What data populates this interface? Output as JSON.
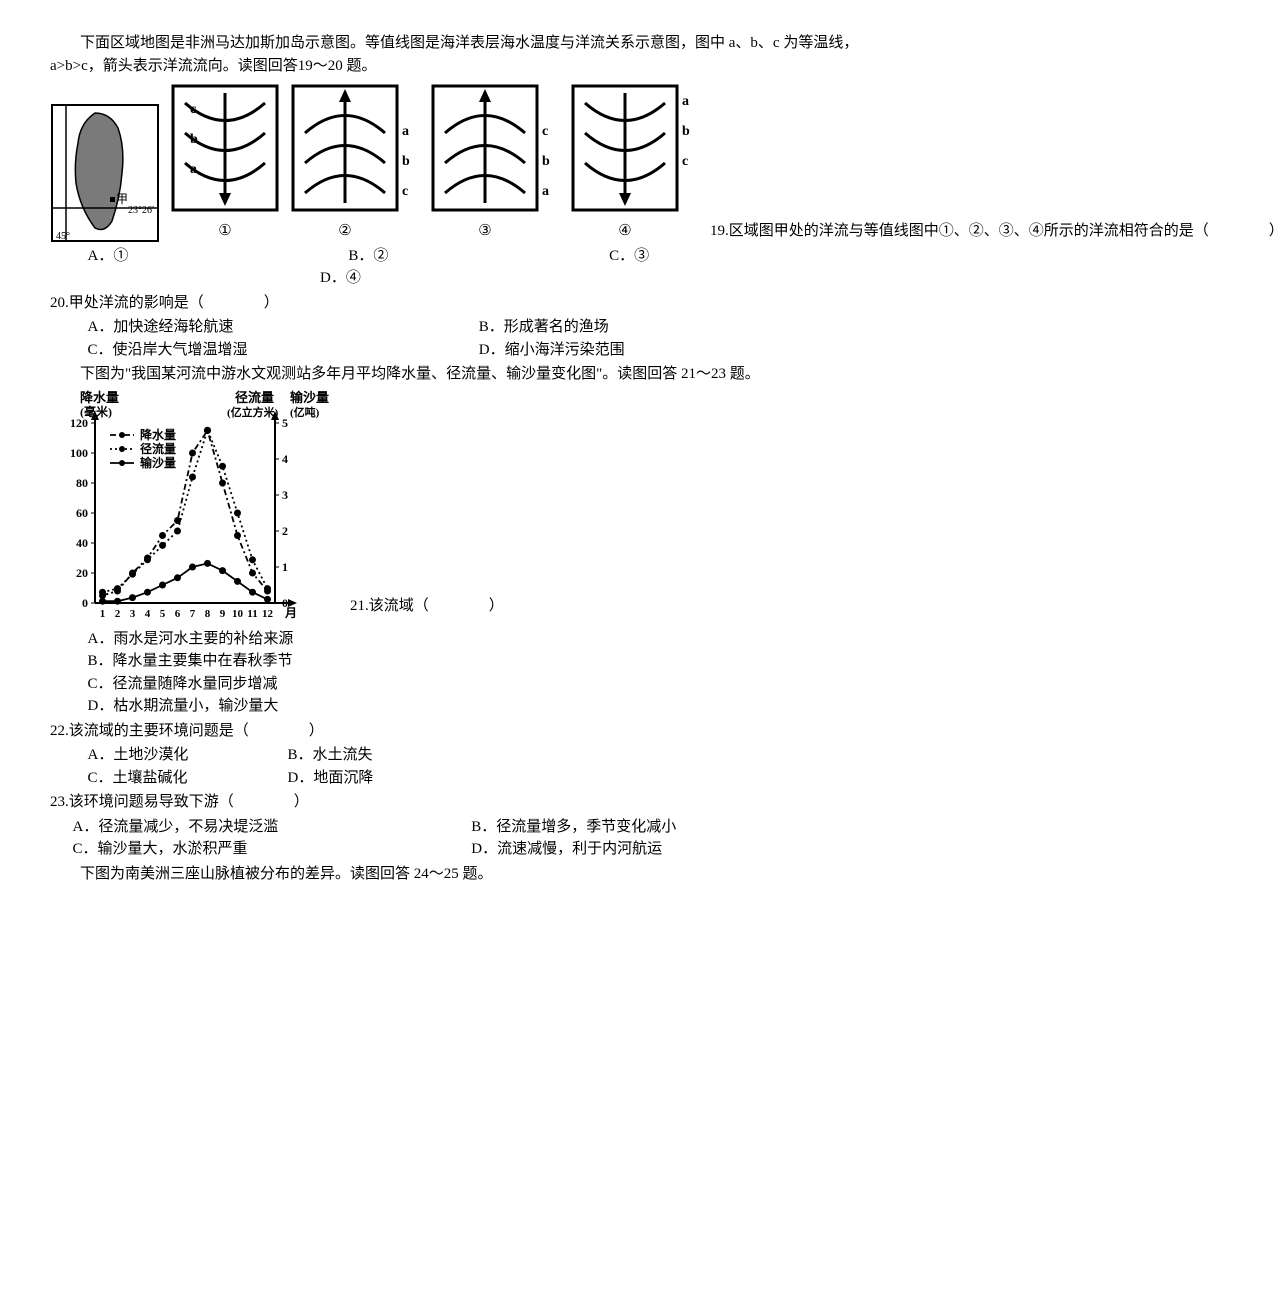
{
  "intro1": "下面区域地图是非洲马达加斯加岛示意图。等值线图是海洋表层海水温度与洋流关系示意图，图中 a、b、c 为等温线，a>b>c，箭头表示洋流流向。读图回答19～20 题。",
  "diagrams": {
    "map": {
      "lat_label": "23°26′",
      "lon_label": "45°",
      "marker": "甲",
      "outline_color": "#000",
      "fill_color": "#808080"
    },
    "panels": [
      {
        "label": "①",
        "dir": "down",
        "letters_inside_top": "c",
        "letters_inside_mid": "b",
        "letters_inside_bot": "a",
        "letter_side": "left"
      },
      {
        "label": "②",
        "dir": "up",
        "letters": [
          "a",
          "b",
          "c"
        ],
        "letter_side": "right"
      },
      {
        "label": "③",
        "dir": "up",
        "letters": [
          "c",
          "b",
          "a"
        ],
        "letter_side": "right"
      },
      {
        "label": "④",
        "dir": "down",
        "letters": [
          "a",
          "b",
          "c"
        ],
        "letter_side": "right"
      }
    ]
  },
  "q19": {
    "lead": "19.区域图甲处的洋流与等值线图中①、②、③、④所示的洋流相符合的是（　　　　）",
    "A": "A．①",
    "B": "B．②",
    "C": "C．③",
    "D": "D．④"
  },
  "q20": {
    "stem": "20.甲处洋流的影响是（　　　　）",
    "A": "A．加快途经海轮航速",
    "B": "B．形成著名的渔场",
    "C": "C．使沿岸大气增温增湿",
    "D": "D．缩小海洋污染范围"
  },
  "intro2": "下图为\"我国某河流中游水文观测站多年月平均降水量、径流量、输沙量变化图\"。读图回答 21～23 题。",
  "chart": {
    "type": "line",
    "x_label": "月",
    "y_left_label_top": "降水量",
    "y_left_label_unit": "(毫米)",
    "y_right1_label_top": "径流量",
    "y_right1_label_unit": "(亿立方米)",
    "y_right2_label_top": "输沙量",
    "y_right2_label_unit": "(亿吨)",
    "x_ticks": [
      "1",
      "2",
      "3",
      "4",
      "5",
      "6",
      "7",
      "8",
      "9",
      "10",
      "11",
      "12"
    ],
    "y_left_ticks": [
      0,
      20,
      40,
      60,
      80,
      100,
      120
    ],
    "y_right_ticks": [
      0,
      1,
      2,
      3,
      4,
      5
    ],
    "y_left_max": 120,
    "y_right_max": 5,
    "legend": [
      {
        "name": "降水量",
        "style": "dash-dot",
        "marker": "circle"
      },
      {
        "name": "径流量",
        "style": "dotted",
        "marker": "circle"
      },
      {
        "name": "输沙量",
        "style": "solid",
        "marker": "circle"
      }
    ],
    "precip": [
      5,
      8,
      20,
      30,
      45,
      55,
      100,
      115,
      80,
      45,
      20,
      8
    ],
    "runoff": [
      0.3,
      0.4,
      0.8,
      1.2,
      1.6,
      2.0,
      3.5,
      4.8,
      3.8,
      2.5,
      1.2,
      0.4
    ],
    "sediment": [
      0.05,
      0.05,
      0.15,
      0.3,
      0.5,
      0.7,
      1.0,
      1.1,
      0.9,
      0.6,
      0.3,
      0.1
    ],
    "stroke": "#000",
    "marker_fill": "#000",
    "bg": "#fff"
  },
  "q21": {
    "lead": "21.该流域（　　　　）",
    "A": "A．雨水是河水主要的补给来源",
    "B": "B．降水量主要集中在春秋季节",
    "C": "C．径流量随降水量同步增减",
    "D": "D．枯水期流量小，输沙量大"
  },
  "q22": {
    "stem": "22.该流域的主要环境问题是（　　　　）",
    "A": "A．土地沙漠化",
    "B": "B．水土流失",
    "C": "C．土壤盐碱化",
    "D": "D．地面沉降"
  },
  "q23": {
    "stem": "23.该环境问题易导致下游（　　　　）",
    "A": "A．径流量减少，不易决堤泛滥",
    "B": "B．径流量增多，季节变化减小",
    "C": "C．输沙量大，水淤积严重",
    "D": "D．流速减慢，利于内河航运"
  },
  "intro3": "下图为南美洲三座山脉植被分布的差异。读图回答 24～25 题。"
}
